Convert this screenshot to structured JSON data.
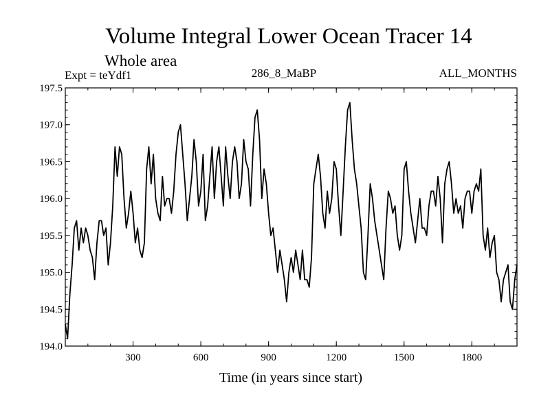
{
  "chart_data": {
    "type": "line",
    "title": "Volume Integral Lower Ocean Tracer 14",
    "subtitle": "Whole area",
    "experiment": "Expt = teYdf1",
    "period": "286_8_MaBP",
    "months": "ALL_MONTHS",
    "xlabel": "Time (in years since start)",
    "ylabel": "",
    "xlim": [
      0,
      2000
    ],
    "ylim": [
      194.0,
      197.5
    ],
    "xticks": [
      300,
      600,
      900,
      1200,
      1500,
      1800
    ],
    "xtick_labels": [
      "300",
      "600",
      "900",
      "1200",
      "1500",
      "1800"
    ],
    "yticks": [
      194.0,
      194.5,
      195.0,
      195.5,
      196.0,
      196.5,
      197.0,
      197.5
    ],
    "ytick_labels": [
      "194.0",
      "194.5",
      "195.0",
      "195.5",
      "196.0",
      "196.5",
      "197.0",
      "197.5"
    ],
    "grid": false,
    "series": [
      {
        "name": "teYdf1",
        "color": "#000000",
        "x": [
          0,
          10,
          20,
          30,
          40,
          50,
          60,
          70,
          80,
          90,
          100,
          110,
          120,
          130,
          140,
          150,
          160,
          170,
          180,
          190,
          200,
          210,
          220,
          230,
          240,
          250,
          260,
          270,
          280,
          290,
          300,
          310,
          320,
          330,
          340,
          350,
          360,
          370,
          380,
          390,
          400,
          410,
          420,
          430,
          440,
          450,
          460,
          470,
          480,
          490,
          500,
          510,
          520,
          530,
          540,
          550,
          560,
          570,
          580,
          590,
          600,
          610,
          620,
          630,
          640,
          650,
          660,
          670,
          680,
          690,
          700,
          710,
          720,
          730,
          740,
          750,
          760,
          770,
          780,
          790,
          800,
          810,
          820,
          830,
          840,
          850,
          860,
          870,
          880,
          890,
          900,
          910,
          920,
          930,
          940,
          950,
          960,
          970,
          980,
          990,
          1000,
          1010,
          1020,
          1030,
          1040,
          1050,
          1060,
          1070,
          1080,
          1090,
          1100,
          1110,
          1120,
          1130,
          1140,
          1150,
          1160,
          1170,
          1180,
          1190,
          1200,
          1210,
          1220,
          1230,
          1240,
          1250,
          1260,
          1270,
          1280,
          1290,
          1300,
          1310,
          1320,
          1330,
          1340,
          1350,
          1360,
          1370,
          1380,
          1390,
          1400,
          1410,
          1420,
          1430,
          1440,
          1450,
          1460,
          1470,
          1480,
          1490,
          1500,
          1510,
          1520,
          1530,
          1540,
          1550,
          1560,
          1570,
          1580,
          1590,
          1600,
          1610,
          1620,
          1630,
          1640,
          1650,
          1660,
          1670,
          1680,
          1690,
          1700,
          1710,
          1720,
          1730,
          1740,
          1750,
          1760,
          1770,
          1780,
          1790,
          1800,
          1810,
          1820,
          1830,
          1840,
          1850,
          1860,
          1870,
          1880,
          1890,
          1900,
          1910,
          1920,
          1930,
          1940,
          1950,
          1960,
          1970,
          1980,
          1990,
          2000
        ],
        "values": [
          194.3,
          194.1,
          194.7,
          195.1,
          195.6,
          195.7,
          195.3,
          195.6,
          195.4,
          195.6,
          195.5,
          195.3,
          195.2,
          194.9,
          195.4,
          195.7,
          195.7,
          195.5,
          195.6,
          195.1,
          195.4,
          195.9,
          196.7,
          196.3,
          196.7,
          196.6,
          196.0,
          195.6,
          195.8,
          196.1,
          195.8,
          195.4,
          195.6,
          195.3,
          195.2,
          195.4,
          196.4,
          196.7,
          196.2,
          196.6,
          196.0,
          195.8,
          195.7,
          196.3,
          195.9,
          196.0,
          196.0,
          195.8,
          196.1,
          196.6,
          196.9,
          197.0,
          196.6,
          196.2,
          195.7,
          196.0,
          196.3,
          196.8,
          196.5,
          195.9,
          196.1,
          196.6,
          195.7,
          195.9,
          196.3,
          196.7,
          196.0,
          196.5,
          196.7,
          196.3,
          195.9,
          196.7,
          196.3,
          196.0,
          196.5,
          196.7,
          196.5,
          196.0,
          196.2,
          196.8,
          196.5,
          196.4,
          195.9,
          196.6,
          197.1,
          197.2,
          196.8,
          196.0,
          196.4,
          196.2,
          195.8,
          195.5,
          195.6,
          195.3,
          195.0,
          195.3,
          195.1,
          194.9,
          194.6,
          195.0,
          195.2,
          195.0,
          195.3,
          195.1,
          194.9,
          195.3,
          194.9,
          194.9,
          194.8,
          195.2,
          196.2,
          196.4,
          196.6,
          196.3,
          195.8,
          195.6,
          196.1,
          195.8,
          196.0,
          196.5,
          196.4,
          195.9,
          195.5,
          196.1,
          196.7,
          197.2,
          197.3,
          196.8,
          196.4,
          196.2,
          195.9,
          195.6,
          195.0,
          194.9,
          195.5,
          196.2,
          196.0,
          195.7,
          195.5,
          195.3,
          195.1,
          194.9,
          195.6,
          196.1,
          196.0,
          195.8,
          195.9,
          195.5,
          195.3,
          195.5,
          196.4,
          196.5,
          196.1,
          195.8,
          195.6,
          195.4,
          195.7,
          196.0,
          195.6,
          195.6,
          195.5,
          195.9,
          196.1,
          196.1,
          195.9,
          196.3,
          196.0,
          195.4,
          196.2,
          196.4,
          196.5,
          196.2,
          195.8,
          196.0,
          195.8,
          195.9,
          195.6,
          196.0,
          196.1,
          196.1,
          195.8,
          196.1,
          196.2,
          196.1,
          196.4,
          195.5,
          195.3,
          195.6,
          195.2,
          195.4,
          195.5,
          195.0,
          194.9,
          194.6,
          194.9,
          195.0,
          195.1,
          194.6,
          194.5,
          194.9,
          195.1
        ]
      }
    ]
  }
}
